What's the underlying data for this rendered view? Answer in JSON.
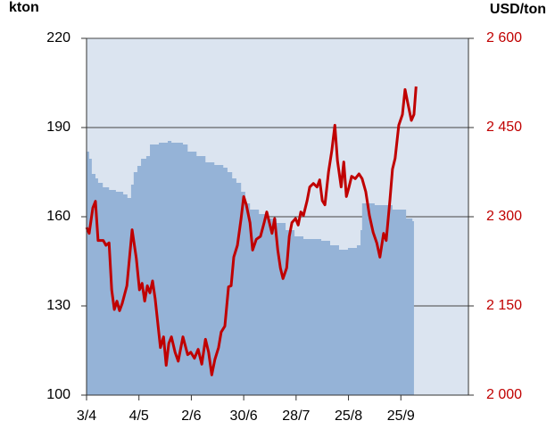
{
  "chart_data": {
    "type": "area-line",
    "y_label": "kton",
    "y2_label": "USD/ton",
    "xlim": [
      0,
      7.29
    ],
    "xticks": [
      {
        "value": 0,
        "label": "3/4"
      },
      {
        "value": 1,
        "label": "4/5"
      },
      {
        "value": 2,
        "label": "2/6"
      },
      {
        "value": 3,
        "label": "30/6"
      },
      {
        "value": 4,
        "label": "28/7"
      },
      {
        "value": 5,
        "label": "25/8"
      },
      {
        "value": 6,
        "label": "25/9"
      }
    ],
    "ylim": [
      100,
      220
    ],
    "yticks": [
      100,
      130,
      160,
      190,
      220
    ],
    "y2lim": [
      2000,
      2600
    ],
    "y2ticks": [
      {
        "value": 2000,
        "label": "2 000"
      },
      {
        "value": 2150,
        "label": "2 150"
      },
      {
        "value": 2300,
        "label": "2 300"
      },
      {
        "value": 2450,
        "label": "2 450"
      },
      {
        "value": 2600,
        "label": "2 600"
      }
    ],
    "grid": true,
    "plot_background": "#dbe4f0",
    "series": [
      {
        "type": "area",
        "color": "#95b3d7",
        "x": [
          0,
          0.05,
          0.1,
          0.17,
          0.22,
          0.31,
          0.43,
          0.56,
          0.7,
          0.78,
          0.85,
          0.9,
          0.97,
          1.04,
          1.14,
          1.21,
          1.38,
          1.55,
          1.62,
          1.84,
          1.93,
          2.1,
          2.27,
          2.44,
          2.61,
          2.69,
          2.78,
          2.86,
          2.95,
          3.03,
          3.12,
          3.29,
          3.46,
          3.63,
          3.8,
          3.97,
          4.14,
          4.31,
          4.48,
          4.65,
          4.82,
          4.99,
          5.16,
          5.23,
          5.26,
          5.5,
          5.84,
          6.1,
          6.22,
          6.25
        ],
        "values": [
          181.9,
          179.5,
          174.4,
          172.9,
          171.4,
          169.9,
          169,
          168.4,
          167.5,
          166.3,
          170.8,
          175,
          177.1,
          179.5,
          180.4,
          184.3,
          184.9,
          185.5,
          184.9,
          184.3,
          181.9,
          180.4,
          178.3,
          177.4,
          176.5,
          175,
          172.9,
          171.4,
          168.4,
          164.5,
          162.4,
          160.9,
          159.4,
          157.9,
          155.5,
          153.4,
          152.5,
          152.5,
          151.9,
          150.4,
          148.9,
          149.5,
          150.4,
          155.5,
          164.5,
          163.9,
          162.4,
          159.4,
          158.5,
          158.5
        ]
      },
      {
        "type": "line",
        "axis": "y2",
        "color": "#c00000",
        "x": [
          0,
          0.05,
          0.12,
          0.17,
          0.22,
          0.32,
          0.37,
          0.43,
          0.48,
          0.53,
          0.58,
          0.63,
          0.68,
          0.77,
          0.87,
          0.95,
          1.01,
          1.06,
          1.11,
          1.16,
          1.21,
          1.26,
          1.31,
          1.41,
          1.47,
          1.52,
          1.57,
          1.62,
          1.69,
          1.75,
          1.84,
          1.93,
          1.99,
          2.06,
          2.13,
          2.2,
          2.27,
          2.33,
          2.39,
          2.45,
          2.52,
          2.57,
          2.64,
          2.71,
          2.76,
          2.81,
          2.88,
          2.95,
          3.0,
          3.05,
          3.12,
          3.17,
          3.24,
          3.32,
          3.39,
          3.44,
          3.49,
          3.54,
          3.59,
          3.65,
          3.7,
          3.75,
          3.82,
          3.87,
          3.92,
          3.99,
          4.04,
          4.09,
          4.14,
          4.21,
          4.26,
          4.33,
          4.4,
          4.45,
          4.5,
          4.55,
          4.62,
          4.68,
          4.74,
          4.79,
          4.86,
          4.91,
          4.96,
          5.01,
          5.06,
          5.13,
          5.2,
          5.26,
          5.33,
          5.4,
          5.47,
          5.54,
          5.6,
          5.67,
          5.72,
          5.79,
          5.84,
          5.89,
          5.96,
          6.03,
          6.08,
          6.13,
          6.2,
          6.25,
          6.29
        ],
        "values": [
          2282,
          2272,
          2315,
          2326,
          2260,
          2260,
          2252,
          2256,
          2177,
          2144,
          2158,
          2142,
          2154,
          2184,
          2278,
          2230,
          2177,
          2188,
          2158,
          2184,
          2172,
          2192,
          2162,
          2080,
          2098,
          2050,
          2087,
          2098,
          2072,
          2057,
          2098,
          2068,
          2072,
          2062,
          2077,
          2052,
          2094,
          2072,
          2034,
          2060,
          2080,
          2106,
          2116,
          2182,
          2184,
          2232,
          2252,
          2297,
          2334,
          2320,
          2290,
          2244,
          2262,
          2267,
          2290,
          2308,
          2290,
          2272,
          2297,
          2244,
          2214,
          2196,
          2214,
          2267,
          2290,
          2297,
          2286,
          2308,
          2302,
          2327,
          2350,
          2356,
          2350,
          2362,
          2327,
          2320,
          2376,
          2410,
          2454,
          2394,
          2350,
          2392,
          2334,
          2350,
          2368,
          2364,
          2372,
          2364,
          2342,
          2302,
          2274,
          2256,
          2232,
          2272,
          2260,
          2327,
          2380,
          2398,
          2454,
          2472,
          2514,
          2492,
          2462,
          2472,
          2519
        ]
      }
    ]
  }
}
